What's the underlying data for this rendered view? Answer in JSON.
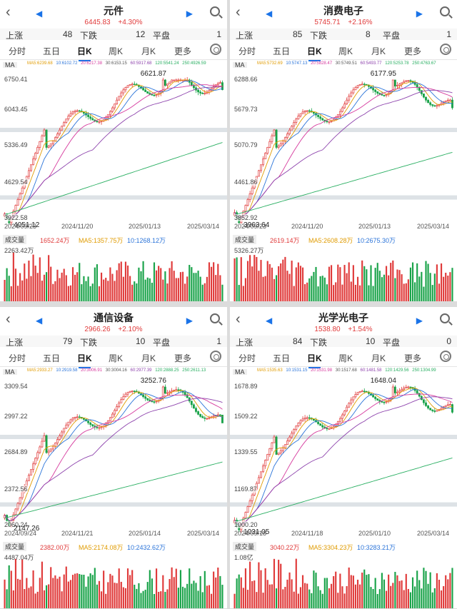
{
  "colors": {
    "up": "#e03a3a",
    "down": "#1aa34a",
    "accent": "#1a73e8"
  },
  "panels": [
    {
      "title": "元件",
      "price": "6445.83",
      "change": "+4.30%",
      "stats": {
        "up_label": "上涨",
        "up": "48",
        "down_label": "下跌",
        "down": "12",
        "flat_label": "平盘",
        "flat": "1"
      },
      "tabs": [
        "分时",
        "五日",
        "日K",
        "周K",
        "月K",
        "更多"
      ],
      "ma_label": "MA",
      "ma_values": [
        "MA5:6239.68",
        "10:6102.72",
        "20:6217.38",
        "30:6153.15",
        "60:5917.68",
        "120:5541.24",
        "250:4926.59"
      ],
      "y_labels": [
        "6750.41",
        "6043.45",
        "5336.49",
        "4629.54",
        "3922.58"
      ],
      "high_label": "6621.87",
      "low_label": "4051.12",
      "dates": [
        "2024/09/23",
        "2024/11/20",
        "2025/01/13",
        "2025/03/14"
      ],
      "vol": {
        "label": "成交量",
        "value": "1652.24万",
        "ma5": "MA5:1357.75万",
        "ma10": "10:1268.12万",
        "max": "2263.42万"
      },
      "chart_data": {
        "type": "candlestick",
        "x": [
          "2024/09/23",
          "2024/11/20",
          "2025/01/13",
          "2025/03/14"
        ],
        "ylim": [
          3922.58,
          6750.41
        ],
        "high": 6621.87,
        "low": 4051.12,
        "last": 6445.83
      },
      "seed": 7
    },
    {
      "title": "消费电子",
      "price": "5745.71",
      "change": "+2.16%",
      "stats": {
        "up_label": "上涨",
        "up": "85",
        "down_label": "下跌",
        "down": "8",
        "flat_label": "平盘",
        "flat": "1"
      },
      "tabs": [
        "分时",
        "五日",
        "日K",
        "周K",
        "月K",
        "更多"
      ],
      "ma_label": "MA",
      "ma_values": [
        "MA5:5732.69",
        "10:5747.13",
        "20:5828.47",
        "30:5749.51",
        "60:5493.77",
        "120:5253.78",
        "250:4763.67"
      ],
      "y_labels": [
        "6288.66",
        "5679.73",
        "5070.79",
        "4461.86",
        "3852.92"
      ],
      "high_label": "6177.95",
      "low_label": "3963.64",
      "dates": [
        "2024/09/23",
        "2024/11/20",
        "2025/01/13",
        "2025/03/14"
      ],
      "vol": {
        "label": "成交量",
        "value": "2619.14万",
        "ma5": "MA5:2608.28万",
        "ma10": "10:2675.30万",
        "max": "5326.27万"
      },
      "chart_data": {
        "type": "candlestick",
        "x": [
          "2024/09/23",
          "2024/11/20",
          "2025/01/13",
          "2025/03/14"
        ],
        "ylim": [
          3852.92,
          6288.66
        ],
        "high": 6177.95,
        "low": 3963.64,
        "last": 5745.71
      },
      "seed": 19
    },
    {
      "title": "通信设备",
      "price": "2966.26",
      "change": "+2.10%",
      "stats": {
        "up_label": "上涨",
        "up": "79",
        "down_label": "下跌",
        "down": "10",
        "flat_label": "平盘",
        "flat": "1"
      },
      "tabs": [
        "分时",
        "五日",
        "日K",
        "周K",
        "月K",
        "更多"
      ],
      "ma_label": "MA",
      "ma_values": [
        "MA5:2933.27",
        "10:2919.58",
        "20:3006.91",
        "30:3004.16",
        "60:2977.39",
        "120:2888.25",
        "250:2611.13"
      ],
      "y_labels": [
        "3309.54",
        "2997.22",
        "2684.89",
        "2372.56",
        "2060.24"
      ],
      "high_label": "3252.76",
      "low_label": "2147.26",
      "dates": [
        "2024/09/24",
        "2024/11/21",
        "2025/01/14",
        "2025/03/14"
      ],
      "vol": {
        "label": "成交量",
        "value": "2382.00万",
        "ma5": "MA5:2174.08万",
        "ma10": "10:2432.62万",
        "max": "4487.04万"
      },
      "chart_data": {
        "type": "candlestick",
        "x": [
          "2024/09/24",
          "2024/11/21",
          "2025/01/14",
          "2025/03/14"
        ],
        "ylim": [
          2060.24,
          3309.54
        ],
        "high": 3252.76,
        "low": 2147.26,
        "last": 2966.26
      },
      "seed": 31
    },
    {
      "title": "光学光电子",
      "price": "1538.80",
      "change": "+1.54%",
      "stats": {
        "up_label": "上涨",
        "up": "84",
        "down_label": "下跌",
        "down": "10",
        "flat_label": "平盘",
        "flat": "0"
      },
      "tabs": [
        "分时",
        "五日",
        "日K",
        "周K",
        "月K",
        "更多"
      ],
      "ma_label": "MA",
      "ma_values": [
        "MA5:1535.63",
        "10:1531.15",
        "20:1531.98",
        "30:1517.68",
        "60:1481.58",
        "120:1429.56",
        "250:1304.99"
      ],
      "y_labels": [
        "1678.89",
        "1509.22",
        "1339.55",
        "1169.87",
        "1000.20"
      ],
      "high_label": "1648.04",
      "low_label": "1031.05",
      "dates": [
        "2024/09/18",
        "2024/11/18",
        "2025/01/10",
        "2025/03/14"
      ],
      "vol": {
        "label": "成交量",
        "value": "3040.22万",
        "ma5": "MA5:3304.23万",
        "ma10": "10:3283.21万",
        "max": "1.08亿"
      },
      "chart_data": {
        "type": "candlestick",
        "x": [
          "2024/09/18",
          "2024/11/18",
          "2025/01/10",
          "2025/03/14"
        ],
        "ylim": [
          1000.2,
          1678.89
        ],
        "high": 1648.04,
        "low": 1031.05,
        "last": 1538.8
      },
      "seed": 43
    }
  ]
}
